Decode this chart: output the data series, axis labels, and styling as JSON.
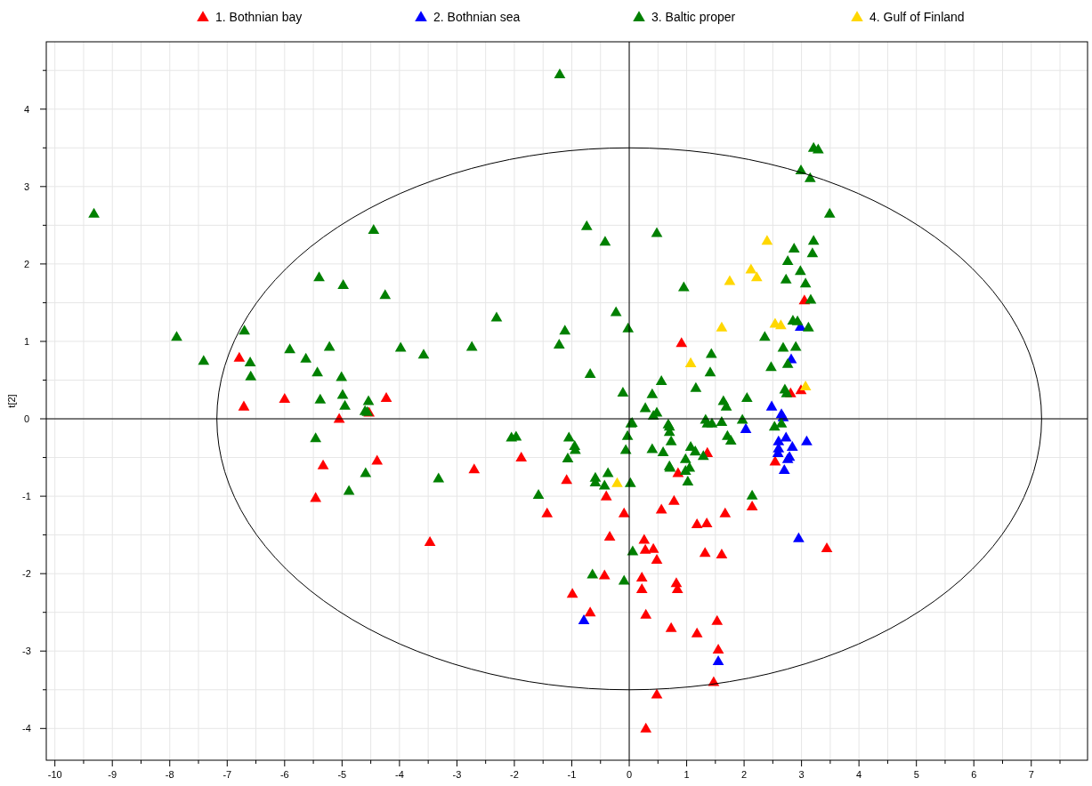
{
  "chart_data": {
    "type": "scatter",
    "ylabel": "t[2]",
    "marker": "triangle",
    "legend": "top",
    "grid": true,
    "xlim": [
      -10.15,
      7.98
    ],
    "ylim": [
      -4.41,
      4.87
    ],
    "xticks": [
      -10,
      {
        "value": -9.5,
        "label": null
      },
      -9,
      {
        "value": -8.5,
        "label": null
      },
      -8,
      {
        "value": -7.5,
        "label": null
      },
      -7,
      {
        "value": -6.5,
        "label": null
      },
      -6,
      {
        "value": -5.5,
        "label": null
      },
      -5,
      {
        "value": -4.5,
        "label": null
      },
      -4,
      {
        "value": -3.5,
        "label": null
      },
      -3,
      {
        "value": -2.5,
        "label": null
      },
      -2,
      {
        "value": -1.5,
        "label": null
      },
      -1,
      {
        "value": -0.5,
        "label": null
      },
      0,
      {
        "value": 0.5,
        "label": null
      },
      1,
      {
        "value": 1.5,
        "label": null
      },
      2,
      {
        "value": 2.5,
        "label": null
      },
      3,
      {
        "value": 3.5,
        "label": null
      },
      4,
      {
        "value": 4.5,
        "label": null
      },
      5,
      {
        "value": 5.5,
        "label": null
      },
      6,
      {
        "value": 6.5,
        "label": null
      },
      7,
      {
        "value": 7.5,
        "label": null
      }
    ],
    "yticks": [
      -4,
      {
        "value": -3.5,
        "label": null
      },
      -3,
      {
        "value": -2.5,
        "label": null
      },
      -2,
      {
        "value": -1.5,
        "label": null
      },
      -1,
      {
        "value": -0.5,
        "label": null
      },
      0,
      {
        "value": 0.5,
        "label": null
      },
      1,
      {
        "value": 1.5,
        "label": null
      },
      2,
      {
        "value": 2.5,
        "label": null
      },
      3,
      {
        "value": 3.5,
        "label": null
      },
      4,
      {
        "value": 4.5,
        "label": null
      }
    ],
    "series": [
      {
        "name": "1. Bothnian bay",
        "color": "#ff0000",
        "x": [
          -6.79,
          -6.71,
          -6.0,
          -5.05,
          -4.53,
          -4.23,
          -5.33,
          -4.39,
          -5.46,
          -3.47,
          -2.7,
          -1.88,
          -1.43,
          -1.09,
          -0.4,
          -0.09,
          -0.34,
          -0.43,
          -0.99,
          -0.68,
          0.26,
          0.28,
          0.42,
          0.48,
          0.22,
          0.22,
          0.29,
          0.73,
          0.56,
          0.78,
          0.85,
          0.82,
          0.84,
          0.48,
          0.29,
          1.36,
          2.54,
          1.18,
          1.35,
          1.67,
          2.14,
          1.32,
          1.61,
          1.18,
          1.53,
          1.55,
          1.47,
          3.44,
          2.81,
          2.99,
          0.91,
          3.05
        ],
        "values": [
          0.78,
          0.15,
          0.25,
          -0.01,
          0.07,
          0.26,
          -0.61,
          -0.55,
          -1.03,
          -1.6,
          -0.66,
          -0.51,
          -1.23,
          -0.8,
          -1.01,
          -1.23,
          -1.53,
          -2.03,
          -2.27,
          -2.51,
          -1.57,
          -1.7,
          -1.69,
          -1.83,
          -2.06,
          -2.21,
          -2.54,
          -2.71,
          -1.18,
          -1.07,
          -0.71,
          -2.13,
          -2.21,
          -3.57,
          -4.01,
          -0.45,
          -0.56,
          -1.37,
          -1.36,
          -1.23,
          -1.14,
          -1.74,
          -1.76,
          -2.78,
          -2.62,
          -2.99,
          -3.41,
          -1.68,
          0.32,
          0.36,
          0.97,
          1.52
        ]
      },
      {
        "name": "2. Bothnian sea",
        "color": "#0000ff",
        "x": [
          -0.79,
          2.48,
          2.65,
          2.68,
          2.03,
          2.6,
          2.73,
          2.84,
          3.09,
          2.59,
          2.76,
          2.79,
          2.7,
          2.6,
          2.95,
          1.55,
          2.98,
          2.82
        ],
        "values": [
          -2.61,
          0.15,
          0.05,
          0.01,
          -0.14,
          -0.3,
          -0.25,
          -0.37,
          -0.3,
          -0.45,
          -0.53,
          -0.5,
          -0.67,
          -0.39,
          -1.55,
          -3.14,
          1.18,
          0.76
        ]
      },
      {
        "name": "3. Baltic proper",
        "color": "#008000",
        "x": [
          -9.32,
          -4.45,
          -5.4,
          -4.98,
          -4.25,
          -6.7,
          -7.88,
          -7.41,
          -6.6,
          -6.59,
          -5.91,
          -5.63,
          -5.22,
          -3.98,
          -3.58,
          -5.43,
          -5.01,
          -5.38,
          -4.99,
          -4.95,
          -4.54,
          -4.56,
          -4.6,
          -5.46,
          -4.59,
          -4.88,
          -1.21,
          -0.74,
          -0.42,
          0.48,
          0.95,
          -2.31,
          -0.23,
          -0.02,
          -1.12,
          -1.22,
          -2.74,
          -0.68,
          0.56,
          -0.11,
          0.4,
          0.28,
          0.42,
          0.48,
          0.05,
          0.68,
          -3.32,
          -2.05,
          -1.97,
          -1.05,
          -0.95,
          -0.94,
          -1.07,
          -1.58,
          -0.59,
          -0.59,
          -0.37,
          -0.43,
          0.02,
          0.03,
          -0.03,
          -0.06,
          0.06,
          -0.64,
          -0.09,
          0.4,
          0.59,
          0.7,
          0.7,
          0.73,
          0.7,
          0.71,
          1.16,
          1.41,
          1.64,
          1.69,
          2.05,
          0.98,
          1.05,
          1.02,
          0.98,
          1.07,
          1.15,
          1.29,
          1.33,
          1.36,
          1.44,
          1.61,
          1.71,
          1.77,
          1.97,
          2.53,
          2.65,
          2.14,
          2.71,
          2.74,
          3.21,
          3.29,
          2.99,
          3.15,
          3.49,
          3.21,
          2.87,
          3.19,
          2.76,
          2.98,
          2.73,
          3.07,
          3.16,
          2.85,
          2.93,
          3.12,
          2.36,
          2.68,
          2.9,
          1.43,
          2.76,
          2.47
        ],
        "values": [
          2.64,
          2.43,
          1.82,
          1.72,
          1.59,
          1.13,
          1.05,
          0.74,
          0.72,
          0.54,
          0.89,
          0.77,
          0.92,
          0.91,
          0.82,
          0.59,
          0.53,
          0.24,
          0.3,
          0.16,
          0.22,
          0.08,
          0.09,
          -0.26,
          -0.71,
          -0.94,
          4.44,
          2.48,
          2.28,
          2.39,
          1.69,
          1.3,
          1.37,
          1.16,
          1.13,
          0.95,
          0.92,
          0.57,
          0.48,
          0.33,
          0.31,
          0.13,
          0.03,
          0.07,
          -0.06,
          -0.08,
          -0.78,
          -0.25,
          -0.24,
          -0.25,
          -0.36,
          -0.41,
          -0.52,
          -0.99,
          -0.77,
          -0.83,
          -0.71,
          -0.87,
          -0.84,
          -0.07,
          -0.23,
          -0.41,
          -1.72,
          -2.02,
          -2.1,
          -0.4,
          -0.44,
          -0.11,
          -0.18,
          -0.3,
          -0.62,
          -0.64,
          0.39,
          0.59,
          0.22,
          0.15,
          0.26,
          -0.68,
          -0.64,
          -0.82,
          -0.53,
          -0.37,
          -0.43,
          -0.49,
          -0.02,
          -0.07,
          -0.07,
          -0.05,
          -0.23,
          -0.29,
          -0.02,
          -0.11,
          -0.07,
          -1.0,
          0.37,
          0.32,
          3.49,
          3.47,
          3.2,
          3.1,
          2.64,
          2.29,
          2.19,
          2.13,
          2.03,
          1.9,
          1.79,
          1.74,
          1.53,
          1.26,
          1.25,
          1.17,
          1.05,
          0.91,
          0.92,
          0.83,
          0.7,
          0.66
        ]
      },
      {
        "name": "4. Gulf of Finland",
        "color": "#ffd700",
        "x": [
          -0.21,
          2.4,
          2.12,
          2.22,
          1.75,
          1.61,
          2.54,
          2.64,
          1.07,
          3.07
        ],
        "values": [
          -0.84,
          2.29,
          1.92,
          1.82,
          1.77,
          1.17,
          1.22,
          1.2,
          0.71,
          0.41
        ]
      }
    ]
  }
}
